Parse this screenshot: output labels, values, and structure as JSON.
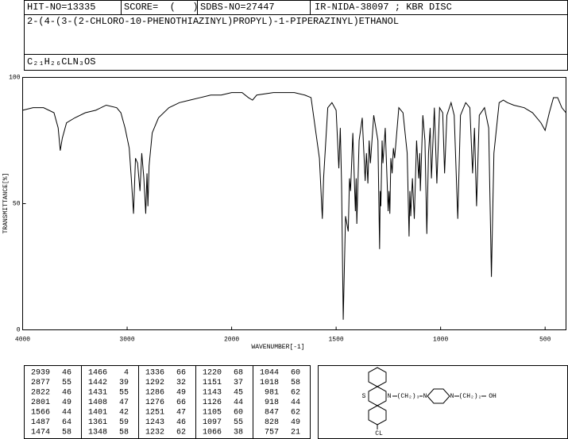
{
  "header": {
    "hit_no": "HIT-NO=13335",
    "score": "SCORE=  (   )",
    "sdbs_no": "SDBS-NO=27447",
    "method": "IR-NIDA-38097 ; KBR DISC",
    "name": "2-(4-(3-(2-CHLORO-10-PHENOTHIAZINYL)PROPYL)-1-PIPERAZINYL)ETHANOL",
    "formula": "C₂₁H₂₆CLN₃OS"
  },
  "chart_data": {
    "type": "line",
    "x_label": "WAVENUMBER[-1]",
    "y_label": "TRANSMITTANCE[%]",
    "color": "#000000",
    "xlim": [
      4000,
      400
    ],
    "x_scale_break": 2000,
    "xticks": [
      4000,
      3000,
      2000,
      1500,
      1000,
      500
    ],
    "ylim": [
      0,
      100
    ],
    "yticks": [
      0,
      50,
      100
    ],
    "x": [
      4000,
      3900,
      3800,
      3700,
      3660,
      3640,
      3620,
      3580,
      3500,
      3400,
      3300,
      3200,
      3100,
      3060,
      3020,
      2980,
      2960,
      2939,
      2920,
      2900,
      2877,
      2860,
      2840,
      2822,
      2810,
      2801,
      2790,
      2760,
      2740,
      2700,
      2600,
      2500,
      2400,
      2300,
      2200,
      2100,
      2000,
      1950,
      1920,
      1900,
      1880,
      1800,
      1700,
      1650,
      1620,
      1600,
      1580,
      1566,
      1560,
      1540,
      1520,
      1500,
      1487,
      1480,
      1474,
      1466,
      1455,
      1442,
      1436,
      1431,
      1420,
      1408,
      1404,
      1401,
      1390,
      1375,
      1361,
      1355,
      1348,
      1342,
      1336,
      1320,
      1300,
      1292,
      1289,
      1286,
      1280,
      1276,
      1265,
      1251,
      1247,
      1243,
      1238,
      1232,
      1226,
      1220,
      1200,
      1180,
      1160,
      1151,
      1147,
      1143,
      1135,
      1126,
      1115,
      1105,
      1100,
      1097,
      1085,
      1075,
      1066,
      1058,
      1050,
      1044,
      1030,
      1018,
      1005,
      990,
      981,
      970,
      950,
      935,
      918,
      905,
      880,
      860,
      847,
      838,
      828,
      815,
      790,
      770,
      757,
      745,
      720,
      700,
      680,
      650,
      600,
      560,
      520,
      500,
      480,
      460,
      440,
      420,
      400
    ],
    "values": [
      87,
      88,
      88,
      86,
      80,
      71,
      76,
      82,
      84,
      86,
      87,
      89,
      88,
      86,
      80,
      72,
      60,
      46,
      68,
      66,
      55,
      70,
      60,
      46,
      62,
      49,
      65,
      78,
      80,
      84,
      88,
      90,
      91,
      92,
      93,
      93,
      94,
      94,
      92,
      91,
      93,
      94,
      94,
      93,
      92,
      80,
      68,
      44,
      60,
      88,
      90,
      87,
      64,
      80,
      58,
      4,
      45,
      39,
      60,
      55,
      78,
      47,
      60,
      42,
      75,
      84,
      59,
      70,
      58,
      75,
      66,
      85,
      75,
      32,
      55,
      49,
      75,
      66,
      80,
      47,
      55,
      46,
      68,
      62,
      72,
      68,
      88,
      86,
      70,
      37,
      55,
      45,
      60,
      44,
      75,
      60,
      70,
      55,
      85,
      75,
      38,
      70,
      80,
      60,
      88,
      58,
      88,
      86,
      62,
      85,
      90,
      85,
      44,
      85,
      90,
      88,
      62,
      80,
      49,
      85,
      88,
      80,
      21,
      70,
      90,
      91,
      90,
      89,
      88,
      86,
      82,
      79,
      86,
      92,
      92,
      88,
      86
    ]
  },
  "peak_table": [
    [
      "2939",
      "46"
    ],
    [
      "2877",
      "55"
    ],
    [
      "2822",
      "46"
    ],
    [
      "2801",
      "49"
    ],
    [
      "1566",
      "44"
    ],
    [
      "1487",
      "64"
    ],
    [
      "1474",
      "58"
    ],
    [
      "1466",
      "4"
    ],
    [
      "1442",
      "39"
    ],
    [
      "1431",
      "55"
    ],
    [
      "1408",
      "47"
    ],
    [
      "1401",
      "42"
    ],
    [
      "1361",
      "59"
    ],
    [
      "1348",
      "58"
    ],
    [
      "1336",
      "66"
    ],
    [
      "1292",
      "32"
    ],
    [
      "1286",
      "49"
    ],
    [
      "1276",
      "66"
    ],
    [
      "1251",
      "47"
    ],
    [
      "1243",
      "46"
    ],
    [
      "1232",
      "62"
    ],
    [
      "1220",
      "68"
    ],
    [
      "1151",
      "37"
    ],
    [
      "1143",
      "45"
    ],
    [
      "1126",
      "44"
    ],
    [
      "1105",
      "60"
    ],
    [
      "1097",
      "55"
    ],
    [
      "1066",
      "38"
    ],
    [
      "1044",
      "60"
    ],
    [
      "1018",
      "58"
    ],
    [
      "981",
      "62"
    ],
    [
      "918",
      "44"
    ],
    [
      "847",
      "62"
    ],
    [
      "828",
      "49"
    ],
    [
      "757",
      "21"
    ]
  ],
  "structure": {
    "labels": [
      "S",
      "N",
      "(CH₂)₃",
      "N",
      "N",
      "(CH₂)₂",
      "OH",
      "CL"
    ]
  }
}
